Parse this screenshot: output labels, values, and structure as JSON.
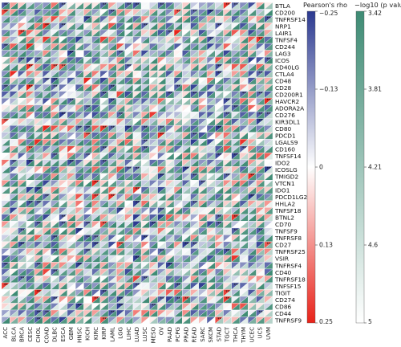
{
  "chart_data": {
    "type": "heatmap",
    "title": "",
    "xlabel": "",
    "ylabel": "",
    "cancer_types": [
      "ACC",
      "BLCA",
      "BRCA",
      "CESC",
      "CHOL",
      "COAD",
      "DLBC",
      "ESCA",
      "GBM",
      "HNSC",
      "KICH",
      "KIRC",
      "KIRP",
      "LAML",
      "LGG",
      "LIHC",
      "LUAD",
      "LUSC",
      "MESO",
      "OV",
      "PAAD",
      "PCPG",
      "PRAD",
      "READ",
      "SARC",
      "SKCM",
      "STAD",
      "TGCT",
      "THCA",
      "THYM",
      "UCEC",
      "UCS",
      "UVM"
    ],
    "genes": [
      "BTLA",
      "CD200",
      "TNFRSF14",
      "NRP1",
      "LAIR1",
      "TNFSF4",
      "CD244",
      "LAG3",
      "ICOS",
      "CD40LG",
      "CTLA4",
      "CD48",
      "CD28",
      "CD200R1",
      "HAVCR2",
      "ADORA2A",
      "CD276",
      "KIR3DL1",
      "CD80",
      "PDCD1",
      "LGALS9",
      "CD160",
      "TNFSF14",
      "IDO2",
      "ICOSLG",
      "TMIGD2",
      "VTCN1",
      "IDO1",
      "PDCD1LG2",
      "HHLA2",
      "TNFSF18",
      "BTNL2",
      "CD70",
      "TNFSF9",
      "TNFRSF8",
      "CD27",
      "TNFRSF25",
      "VSIR",
      "TNFRSF4",
      "CD40",
      "TNFRSF18",
      "TNFSF15",
      "TIGIT",
      "CD274",
      "CD86",
      "CD44",
      "TNFRSF9"
    ],
    "cell_encoding": "upper-left triangle = Pearson's rho; lower-right triangle = -log10(p value); dots mark significance",
    "legend_rho": {
      "title": "Pearson's rho",
      "ticks": [
        "−0.25",
        "−0.13",
        "0",
        "0.13",
        "0.25"
      ],
      "colors": [
        "#2b3990",
        "#7c86c4",
        "#ffffff",
        "#f08070",
        "#e8231a"
      ]
    },
    "legend_p": {
      "title": "−log10 (p value)",
      "ticks": [
        "3.42",
        "3.81",
        "4.21",
        "4.6",
        "5"
      ],
      "colors": [
        "#3e8b74",
        "#a7cfc1",
        "#ffffff"
      ]
    }
  }
}
